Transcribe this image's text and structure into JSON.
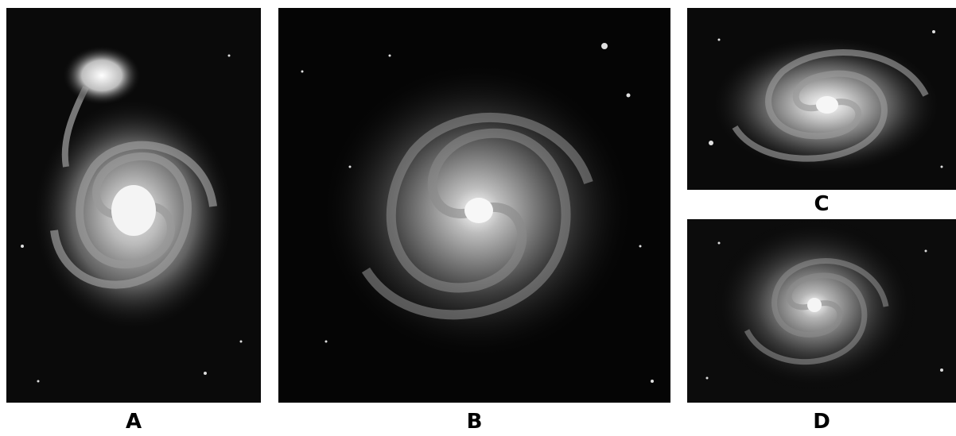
{
  "panels": [
    {
      "id": "A",
      "label": "A",
      "subject": "spiral-galaxy-with-companion"
    },
    {
      "id": "B",
      "label": "B",
      "subject": "spiral-galaxy-face-on"
    },
    {
      "id": "C",
      "label": "C",
      "subject": "spiral-galaxy-tilted"
    },
    {
      "id": "D",
      "label": "D",
      "subject": "spiral-galaxy-face-on"
    }
  ],
  "colors": {
    "background": "#ffffff",
    "sky": "#000000",
    "label": "#000000"
  }
}
